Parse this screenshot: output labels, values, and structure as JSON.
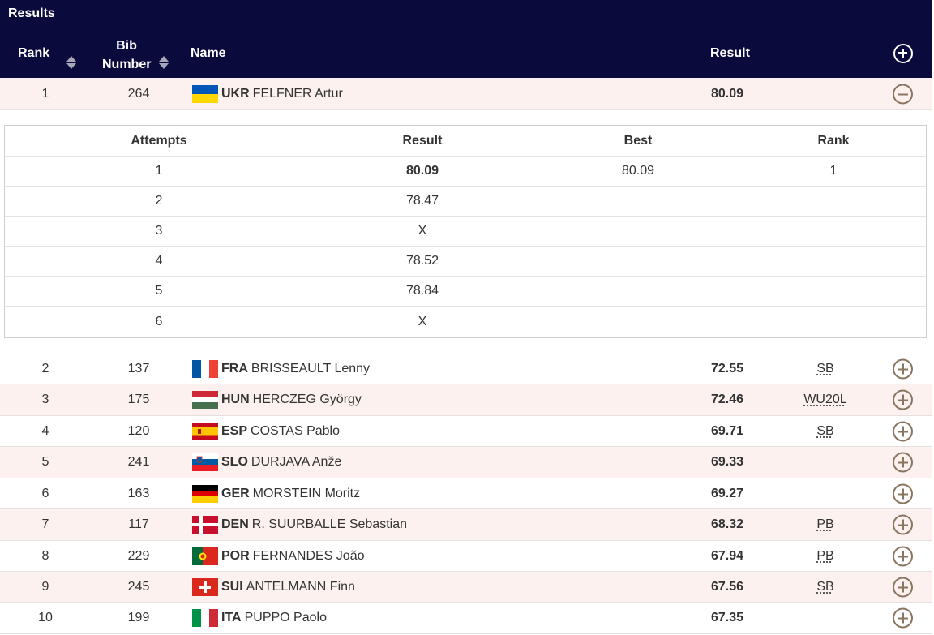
{
  "header": {
    "title": "Results",
    "columns": {
      "rank": "Rank",
      "bib_line1": "Bib",
      "bib_line2": "Number",
      "name": "Name",
      "result": "Result"
    },
    "expand_all_icon": "plus-circle-icon"
  },
  "rows": [
    {
      "rank": "1",
      "bib": "264",
      "nat": "UKR",
      "name": "FELFNER Artur",
      "result": "80.09",
      "note": "",
      "flag": "ukraine-flag",
      "toggle": "minus-circle-icon"
    },
    {
      "rank": "2",
      "bib": "137",
      "nat": "FRA",
      "name": "BRISSEAULT Lenny",
      "result": "72.55",
      "note": "SB",
      "flag": "france-flag",
      "toggle": "plus-circle-icon"
    },
    {
      "rank": "3",
      "bib": "175",
      "nat": "HUN",
      "name": "HERCZEG György",
      "result": "72.46",
      "note": "WU20L",
      "flag": "hungary-flag",
      "toggle": "plus-circle-icon"
    },
    {
      "rank": "4",
      "bib": "120",
      "nat": "ESP",
      "name": "COSTAS Pablo",
      "result": "69.71",
      "note": "SB",
      "flag": "spain-flag",
      "toggle": "plus-circle-icon"
    },
    {
      "rank": "5",
      "bib": "241",
      "nat": "SLO",
      "name": "DURJAVA Anže",
      "result": "69.33",
      "note": "",
      "flag": "slovenia-flag",
      "toggle": "plus-circle-icon"
    },
    {
      "rank": "6",
      "bib": "163",
      "nat": "GER",
      "name": "MORSTEIN Moritz",
      "result": "69.27",
      "note": "",
      "flag": "germany-flag",
      "toggle": "plus-circle-icon"
    },
    {
      "rank": "7",
      "bib": "117",
      "nat": "DEN",
      "name": "R. SUURBALLE Sebastian",
      "result": "68.32",
      "note": "PB",
      "flag": "denmark-flag",
      "toggle": "plus-circle-icon"
    },
    {
      "rank": "8",
      "bib": "229",
      "nat": "POR",
      "name": "FERNANDES João",
      "result": "67.94",
      "note": "PB",
      "flag": "portugal-flag",
      "toggle": "plus-circle-icon"
    },
    {
      "rank": "9",
      "bib": "245",
      "nat": "SUI",
      "name": "ANTELMANN Finn",
      "result": "67.56",
      "note": "SB",
      "flag": "switzerland-flag",
      "toggle": "plus-circle-icon"
    },
    {
      "rank": "10",
      "bib": "199",
      "nat": "ITA",
      "name": "PUPPO Paolo",
      "result": "67.35",
      "note": "",
      "flag": "italy-flag",
      "toggle": "plus-circle-icon"
    }
  ],
  "attempts": {
    "columns": {
      "attempts": "Attempts",
      "result": "Result",
      "best": "Best",
      "rank": "Rank"
    },
    "rows": [
      {
        "attempt": "1",
        "result": "80.09",
        "best": "80.09",
        "rank": "1"
      },
      {
        "attempt": "2",
        "result": "78.47",
        "best": "",
        "rank": ""
      },
      {
        "attempt": "3",
        "result": "X",
        "best": "",
        "rank": ""
      },
      {
        "attempt": "4",
        "result": "78.52",
        "best": "",
        "rank": ""
      },
      {
        "attempt": "5",
        "result": "78.84",
        "best": "",
        "rank": ""
      },
      {
        "attempt": "6",
        "result": "X",
        "best": "",
        "rank": ""
      }
    ]
  },
  "colors": {
    "header_bg": "#0a0a3c",
    "row_pink": "#fdf1ef",
    "toggle": "#8a7560"
  }
}
